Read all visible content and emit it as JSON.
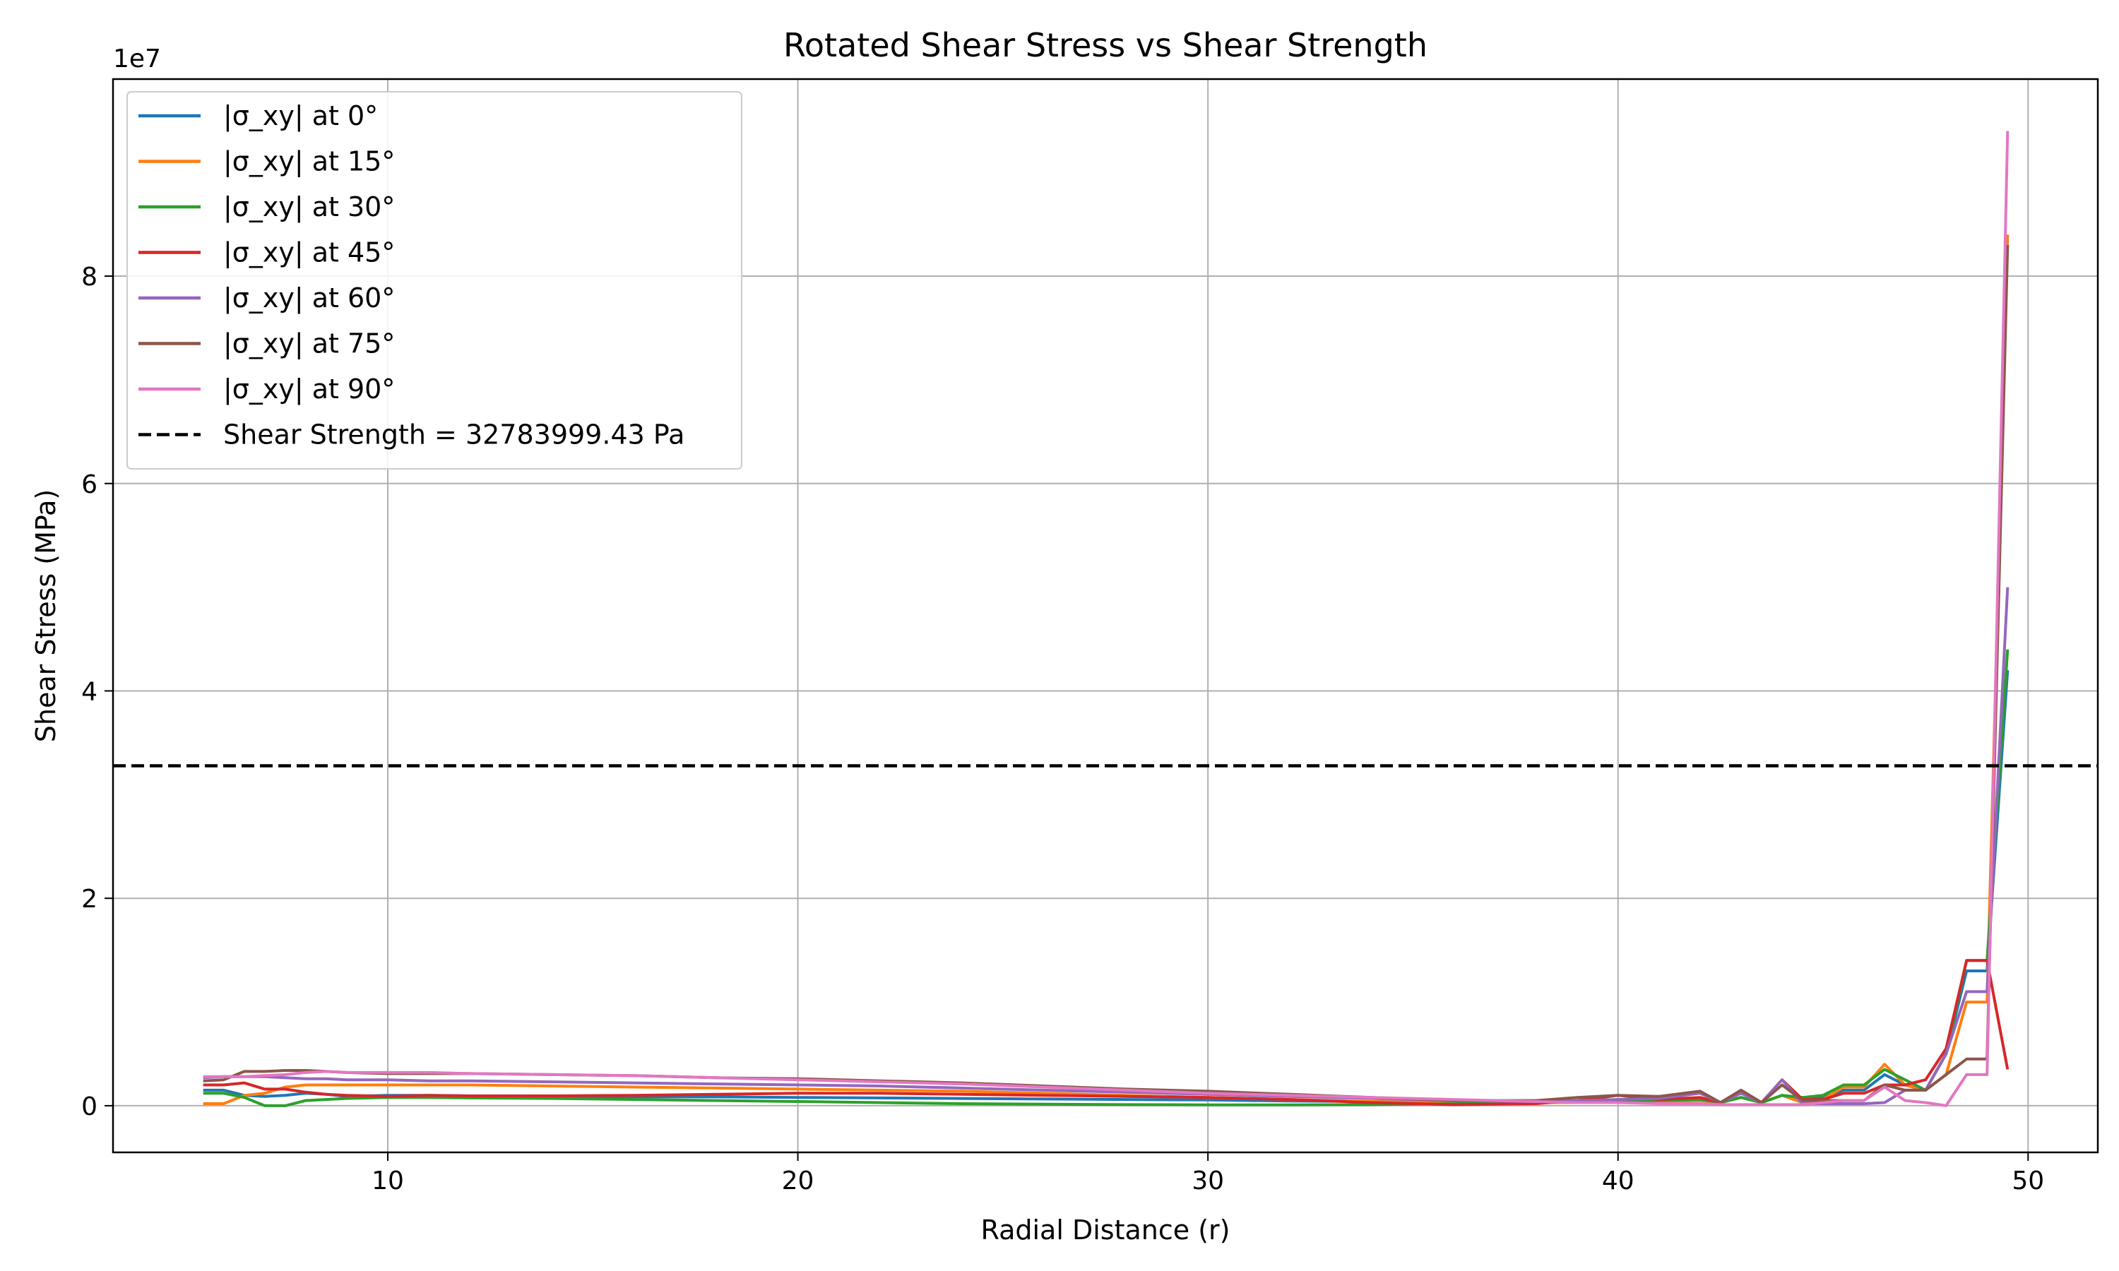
{
  "chart_data": {
    "type": "line",
    "title": "Rotated Shear Stress vs Shear Strength",
    "xlabel": "Radial Distance (r)",
    "ylabel": "Shear Stress (MPa)",
    "offset_text": "1e7",
    "xlim": [
      3.3,
      51.7
    ],
    "ylim": [
      -4500000,
      99000000
    ],
    "xticks": [
      10,
      20,
      30,
      40,
      50
    ],
    "xtick_labels": [
      "10",
      "20",
      "30",
      "40",
      "50"
    ],
    "yticks": [
      0,
      20000000,
      40000000,
      60000000,
      80000000
    ],
    "ytick_labels": [
      "0",
      "2",
      "4",
      "6",
      "8"
    ],
    "grid": true,
    "legend_position": "top-left",
    "x": [
      5.5,
      6.0,
      6.5,
      7.0,
      7.5,
      8.0,
      8.5,
      9.0,
      10.0,
      11.0,
      12.0,
      14.0,
      16.0,
      18.0,
      20.0,
      22.0,
      24.0,
      26.0,
      28.0,
      30.0,
      32.0,
      34.0,
      36.0,
      38.0,
      39.0,
      40.0,
      41.0,
      42.0,
      42.5,
      43.0,
      43.5,
      44.0,
      44.5,
      45.0,
      45.5,
      46.0,
      46.5,
      47.0,
      47.5,
      48.0,
      48.5,
      49.0,
      49.5
    ],
    "series": [
      {
        "name": "|σ_xy| at 0°",
        "color": "#1f77b4",
        "values": [
          1500000,
          1500000,
          1000000,
          900000,
          1000000,
          1200000,
          1100000,
          900000,
          1000000,
          1000000,
          950000,
          900000,
          850000,
          850000,
          800000,
          750000,
          700000,
          650000,
          600000,
          550000,
          450000,
          400000,
          300000,
          300000,
          400000,
          500000,
          500000,
          600000,
          300000,
          800000,
          300000,
          1000000,
          500000,
          800000,
          1500000,
          1500000,
          3000000,
          2000000,
          1500000,
          5000000,
          13000000,
          13000000,
          42000000
        ]
      },
      {
        "name": "|σ_xy| at 15°",
        "color": "#ff7f0e",
        "values": [
          200000,
          200000,
          1000000,
          1200000,
          1800000,
          2000000,
          2000000,
          2000000,
          2000000,
          2000000,
          2000000,
          1900000,
          1800000,
          1700000,
          1600000,
          1500000,
          1400000,
          1200000,
          1000000,
          800000,
          600000,
          400000,
          300000,
          300000,
          300000,
          400000,
          400000,
          500000,
          300000,
          800000,
          300000,
          1000000,
          300000,
          600000,
          1800000,
          1800000,
          4000000,
          2000000,
          1500000,
          3000000,
          10000000,
          10000000,
          84000000
        ]
      },
      {
        "name": "|σ_xy| at 30°",
        "color": "#2ca02c",
        "values": [
          1200000,
          1200000,
          800000,
          0,
          0,
          500000,
          600000,
          700000,
          800000,
          800000,
          750000,
          700000,
          600000,
          500000,
          400000,
          300000,
          200000,
          150000,
          100000,
          80000,
          80000,
          100000,
          200000,
          300000,
          400000,
          500000,
          500000,
          600000,
          300000,
          800000,
          300000,
          1000000,
          800000,
          1000000,
          2000000,
          2000000,
          3500000,
          2500000,
          1500000,
          5000000,
          14000000,
          14000000,
          44000000
        ]
      },
      {
        "name": "|σ_xy| at 45°",
        "color": "#d62728",
        "values": [
          2000000,
          2000000,
          2200000,
          1600000,
          1600000,
          1300000,
          1100000,
          1000000,
          900000,
          1000000,
          950000,
          950000,
          1000000,
          1100000,
          1200000,
          1200000,
          1100000,
          1000000,
          900000,
          800000,
          600000,
          300000,
          100000,
          200000,
          500000,
          1000000,
          600000,
          800000,
          300000,
          1500000,
          300000,
          2500000,
          600000,
          600000,
          1200000,
          1200000,
          2000000,
          2000000,
          2500000,
          5500000,
          14000000,
          14000000,
          3500000
        ]
      },
      {
        "name": "|σ_xy| at 60°",
        "color": "#9467bd",
        "values": [
          2700000,
          2800000,
          2800000,
          2800000,
          2700000,
          2600000,
          2600000,
          2500000,
          2500000,
          2400000,
          2400000,
          2300000,
          2200000,
          2100000,
          2000000,
          1900000,
          1700000,
          1500000,
          1300000,
          1100000,
          900000,
          700000,
          500000,
          400000,
          500000,
          600000,
          700000,
          1200000,
          300000,
          1200000,
          300000,
          2500000,
          200000,
          200000,
          200000,
          200000,
          300000,
          1500000,
          1500000,
          5000000,
          11000000,
          11000000,
          50000000
        ]
      },
      {
        "name": "|σ_xy| at 75°",
        "color": "#8c564b",
        "values": [
          2400000,
          2500000,
          3300000,
          3300000,
          3400000,
          3400000,
          3300000,
          3200000,
          3100000,
          3100000,
          3100000,
          3000000,
          2900000,
          2700000,
          2600000,
          2400000,
          2200000,
          1900000,
          1600000,
          1400000,
          1100000,
          800000,
          500000,
          500000,
          800000,
          1000000,
          900000,
          1400000,
          300000,
          1500000,
          300000,
          2000000,
          500000,
          500000,
          500000,
          500000,
          2000000,
          1500000,
          1500000,
          3000000,
          4500000,
          4500000,
          83000000
        ]
      },
      {
        "name": "|σ_xy| at 90°",
        "color": "#e377c2",
        "values": [
          2800000,
          2800000,
          2800000,
          2900000,
          3000000,
          3200000,
          3300000,
          3200000,
          3200000,
          3200000,
          3100000,
          3000000,
          2900000,
          2700000,
          2500000,
          2300000,
          2100000,
          1800000,
          1500000,
          1200000,
          1000000,
          800000,
          600000,
          400000,
          300000,
          300000,
          200000,
          200000,
          100000,
          100000,
          100000,
          100000,
          100000,
          300000,
          500000,
          500000,
          1800000,
          500000,
          300000,
          0,
          3000000,
          3000000,
          94000000
        ]
      }
    ],
    "hlines": [
      {
        "name": "Shear Strength = 32783999.43 Pa",
        "y": 32783999.43,
        "color": "#000000",
        "style": "dashed"
      }
    ]
  }
}
